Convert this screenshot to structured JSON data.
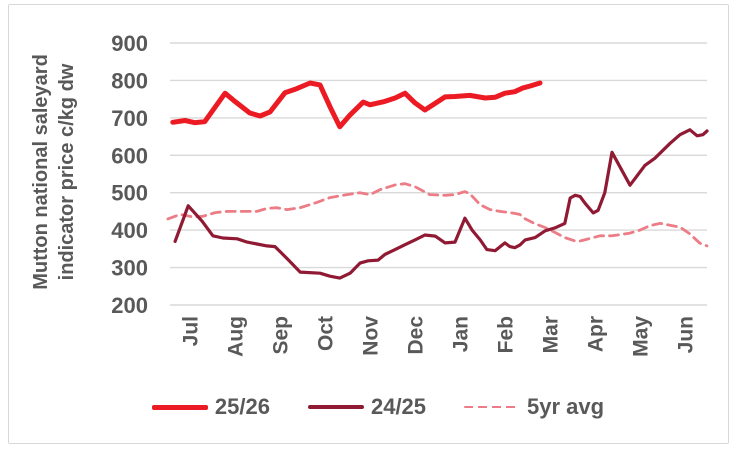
{
  "colors": {
    "grid": "#D9D9D9",
    "text": "#595959",
    "frame": "#D8D8D8",
    "background": "#FFFFFF"
  },
  "chart_data": {
    "type": "line",
    "title": "",
    "ylabel_lines": [
      "Mutton national saleyard",
      "indicator price c/kg dw"
    ],
    "x_axis": {
      "categories": [
        "Jul",
        "Aug",
        "Sep",
        "Oct",
        "Nov",
        "Dec",
        "Jan",
        "Feb",
        "Mar",
        "Apr",
        "May",
        "Jun"
      ],
      "range_months": [
        0,
        12
      ]
    },
    "y_axis": {
      "min": 200,
      "max": 900,
      "tick_step": 100,
      "ticks": [
        900,
        800,
        700,
        600,
        500,
        400,
        300,
        200
      ]
    },
    "grid": "horizontal",
    "legend_position": "bottom",
    "series": [
      {
        "name": "25/26",
        "color": "#EC1B23",
        "style": "solid",
        "width": 5,
        "points": [
          [
            0.13,
            688
          ],
          [
            0.4,
            693
          ],
          [
            0.62,
            687
          ],
          [
            0.84,
            690
          ],
          [
            1.29,
            766
          ],
          [
            1.51,
            744
          ],
          [
            1.84,
            713
          ],
          [
            2.07,
            705
          ],
          [
            2.29,
            716
          ],
          [
            2.62,
            767
          ],
          [
            2.84,
            776
          ],
          [
            3.18,
            793
          ],
          [
            3.4,
            788
          ],
          [
            3.62,
            730
          ],
          [
            3.84,
            676
          ],
          [
            4.07,
            708
          ],
          [
            4.36,
            742
          ],
          [
            4.51,
            735
          ],
          [
            4.84,
            744
          ],
          [
            5.07,
            753
          ],
          [
            5.29,
            766
          ],
          [
            5.51,
            740
          ],
          [
            5.73,
            721
          ],
          [
            6.18,
            756
          ],
          [
            6.4,
            757
          ],
          [
            6.73,
            760
          ],
          [
            7.07,
            753
          ],
          [
            7.29,
            755
          ],
          [
            7.51,
            766
          ],
          [
            7.73,
            770
          ],
          [
            7.91,
            780
          ],
          [
            8.07,
            785
          ],
          [
            8.29,
            793
          ]
        ]
      },
      {
        "name": "24/25",
        "color": "#901A33",
        "style": "solid",
        "width": 3.2,
        "points": [
          [
            0.18,
            370
          ],
          [
            0.47,
            465
          ],
          [
            0.78,
            424
          ],
          [
            1.02,
            385
          ],
          [
            1.24,
            379
          ],
          [
            1.56,
            377
          ],
          [
            1.78,
            368
          ],
          [
            2.0,
            363
          ],
          [
            2.22,
            358
          ],
          [
            2.4,
            356
          ],
          [
            2.67,
            324
          ],
          [
            2.96,
            288
          ],
          [
            3.4,
            285
          ],
          [
            3.62,
            277
          ],
          [
            3.84,
            272
          ],
          [
            4.07,
            285
          ],
          [
            4.29,
            312
          ],
          [
            4.47,
            318
          ],
          [
            4.69,
            320
          ],
          [
            4.84,
            335
          ],
          [
            5.07,
            348
          ],
          [
            5.29,
            361
          ],
          [
            5.51,
            374
          ],
          [
            5.73,
            387
          ],
          [
            5.96,
            384
          ],
          [
            6.18,
            366
          ],
          [
            6.4,
            368
          ],
          [
            6.62,
            432
          ],
          [
            6.78,
            400
          ],
          [
            6.96,
            374
          ],
          [
            7.11,
            348
          ],
          [
            7.29,
            345
          ],
          [
            7.51,
            366
          ],
          [
            7.62,
            356
          ],
          [
            7.73,
            353
          ],
          [
            7.84,
            360
          ],
          [
            7.96,
            374
          ],
          [
            8.18,
            380
          ],
          [
            8.4,
            398
          ],
          [
            8.62,
            406
          ],
          [
            8.84,
            418
          ],
          [
            8.96,
            486
          ],
          [
            9.07,
            493
          ],
          [
            9.18,
            490
          ],
          [
            9.29,
            472
          ],
          [
            9.47,
            446
          ],
          [
            9.58,
            453
          ],
          [
            9.73,
            500
          ],
          [
            9.89,
            608
          ],
          [
            10.29,
            520
          ],
          [
            10.62,
            573
          ],
          [
            10.84,
            592
          ],
          [
            11.18,
            632
          ],
          [
            11.4,
            655
          ],
          [
            11.62,
            668
          ],
          [
            11.78,
            652
          ],
          [
            11.91,
            655
          ],
          [
            12.0,
            665
          ]
        ]
      },
      {
        "name": "5yr avg",
        "color": "#EC7C85",
        "style": "dashed",
        "width": 2.8,
        "points": [
          [
            0.02,
            430
          ],
          [
            0.29,
            442
          ],
          [
            0.58,
            435
          ],
          [
            0.8,
            437
          ],
          [
            1.07,
            447
          ],
          [
            1.33,
            450
          ],
          [
            1.69,
            450
          ],
          [
            2.0,
            450
          ],
          [
            2.22,
            458
          ],
          [
            2.44,
            460
          ],
          [
            2.67,
            455
          ],
          [
            2.96,
            460
          ],
          [
            3.33,
            474
          ],
          [
            3.62,
            487
          ],
          [
            4.0,
            495
          ],
          [
            4.29,
            500
          ],
          [
            4.51,
            495
          ],
          [
            4.73,
            508
          ],
          [
            5.07,
            521
          ],
          [
            5.29,
            524
          ],
          [
            5.51,
            516
          ],
          [
            5.84,
            495
          ],
          [
            6.18,
            493
          ],
          [
            6.4,
            495
          ],
          [
            6.62,
            503
          ],
          [
            6.73,
            497
          ],
          [
            6.96,
            468
          ],
          [
            7.18,
            455
          ],
          [
            7.4,
            450
          ],
          [
            7.62,
            447
          ],
          [
            7.84,
            442
          ],
          [
            7.96,
            430
          ],
          [
            8.18,
            417
          ],
          [
            8.4,
            407
          ],
          [
            8.62,
            394
          ],
          [
            8.84,
            380
          ],
          [
            9.07,
            371
          ],
          [
            9.18,
            371
          ],
          [
            9.47,
            380
          ],
          [
            9.62,
            385
          ],
          [
            9.89,
            385
          ],
          [
            10.07,
            388
          ],
          [
            10.29,
            392
          ],
          [
            10.51,
            400
          ],
          [
            10.73,
            412
          ],
          [
            10.96,
            418
          ],
          [
            11.18,
            413
          ],
          [
            11.4,
            408
          ],
          [
            11.62,
            390
          ],
          [
            11.84,
            365
          ],
          [
            12.0,
            358
          ]
        ]
      }
    ]
  }
}
